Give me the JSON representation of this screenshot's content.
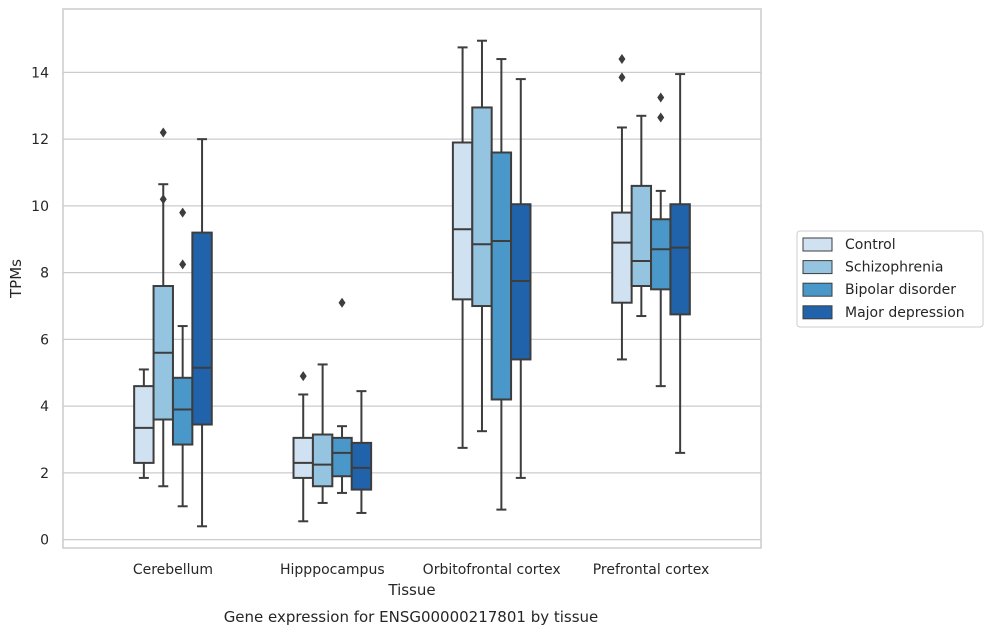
{
  "chart_data": {
    "type": "box",
    "xlabel": "Tissue",
    "ylabel": "TPMs",
    "caption": "Gene expression for ENSG00000217801 by tissue",
    "ylim": [
      -0.25,
      15.9
    ],
    "yticks": [
      0,
      2,
      4,
      6,
      8,
      10,
      12,
      14
    ],
    "grid": "horizontal",
    "legend_position": "right",
    "categories": [
      "Cerebellum",
      "Hipppocampus",
      "Orbitofrontal cortex",
      "Prefrontal cortex"
    ],
    "series": [
      {
        "name": "Control",
        "color": "#d0e1f2",
        "boxes": [
          {
            "whislo": 1.85,
            "q1": 2.3,
            "med": 3.35,
            "q3": 4.6,
            "whishi": 5.1,
            "fliers": []
          },
          {
            "whislo": 0.55,
            "q1": 1.85,
            "med": 2.3,
            "q3": 3.05,
            "whishi": 4.35,
            "fliers": [
              4.9
            ]
          },
          {
            "whislo": 2.75,
            "q1": 7.2,
            "med": 9.3,
            "q3": 11.9,
            "whishi": 14.75,
            "fliers": []
          },
          {
            "whislo": 5.4,
            "q1": 7.1,
            "med": 8.9,
            "q3": 9.8,
            "whishi": 12.35,
            "fliers": [
              13.85,
              14.4
            ]
          }
        ]
      },
      {
        "name": "Schizophrenia",
        "color": "#94c4df",
        "boxes": [
          {
            "whislo": 1.6,
            "q1": 3.6,
            "med": 5.6,
            "q3": 7.6,
            "whishi": 10.65,
            "fliers": [
              10.2,
              12.2
            ]
          },
          {
            "whislo": 1.1,
            "q1": 1.6,
            "med": 2.25,
            "q3": 3.15,
            "whishi": 5.25,
            "fliers": []
          },
          {
            "whislo": 3.25,
            "q1": 7.0,
            "med": 8.85,
            "q3": 12.95,
            "whishi": 14.95,
            "fliers": []
          },
          {
            "whislo": 6.7,
            "q1": 7.6,
            "med": 8.35,
            "q3": 10.6,
            "whishi": 12.7,
            "fliers": []
          }
        ]
      },
      {
        "name": "Bipolar disorder",
        "color": "#4a98c9",
        "boxes": [
          {
            "whislo": 1.0,
            "q1": 2.85,
            "med": 3.9,
            "q3": 4.85,
            "whishi": 6.4,
            "fliers": [
              8.25,
              9.8
            ]
          },
          {
            "whislo": 1.4,
            "q1": 1.9,
            "med": 2.6,
            "q3": 3.05,
            "whishi": 3.4,
            "fliers": [
              7.1
            ]
          },
          {
            "whislo": 0.9,
            "q1": 4.2,
            "med": 8.95,
            "q3": 11.6,
            "whishi": 14.4,
            "fliers": []
          },
          {
            "whislo": 4.6,
            "q1": 7.5,
            "med": 8.7,
            "q3": 9.6,
            "whishi": 10.45,
            "fliers": [
              12.65,
              13.25
            ]
          }
        ]
      },
      {
        "name": "Major depression",
        "color": "#2163aa",
        "boxes": [
          {
            "whislo": 0.4,
            "q1": 3.45,
            "med": 5.15,
            "q3": 9.2,
            "whishi": 12.0,
            "fliers": []
          },
          {
            "whislo": 0.8,
            "q1": 1.5,
            "med": 2.15,
            "q3": 2.9,
            "whishi": 4.45,
            "fliers": []
          },
          {
            "whislo": 1.85,
            "q1": 5.4,
            "med": 7.75,
            "q3": 10.05,
            "whishi": 13.8,
            "fliers": []
          },
          {
            "whislo": 2.6,
            "q1": 6.75,
            "med": 8.75,
            "q3": 10.05,
            "whishi": 13.95,
            "fliers": []
          }
        ]
      }
    ]
  }
}
